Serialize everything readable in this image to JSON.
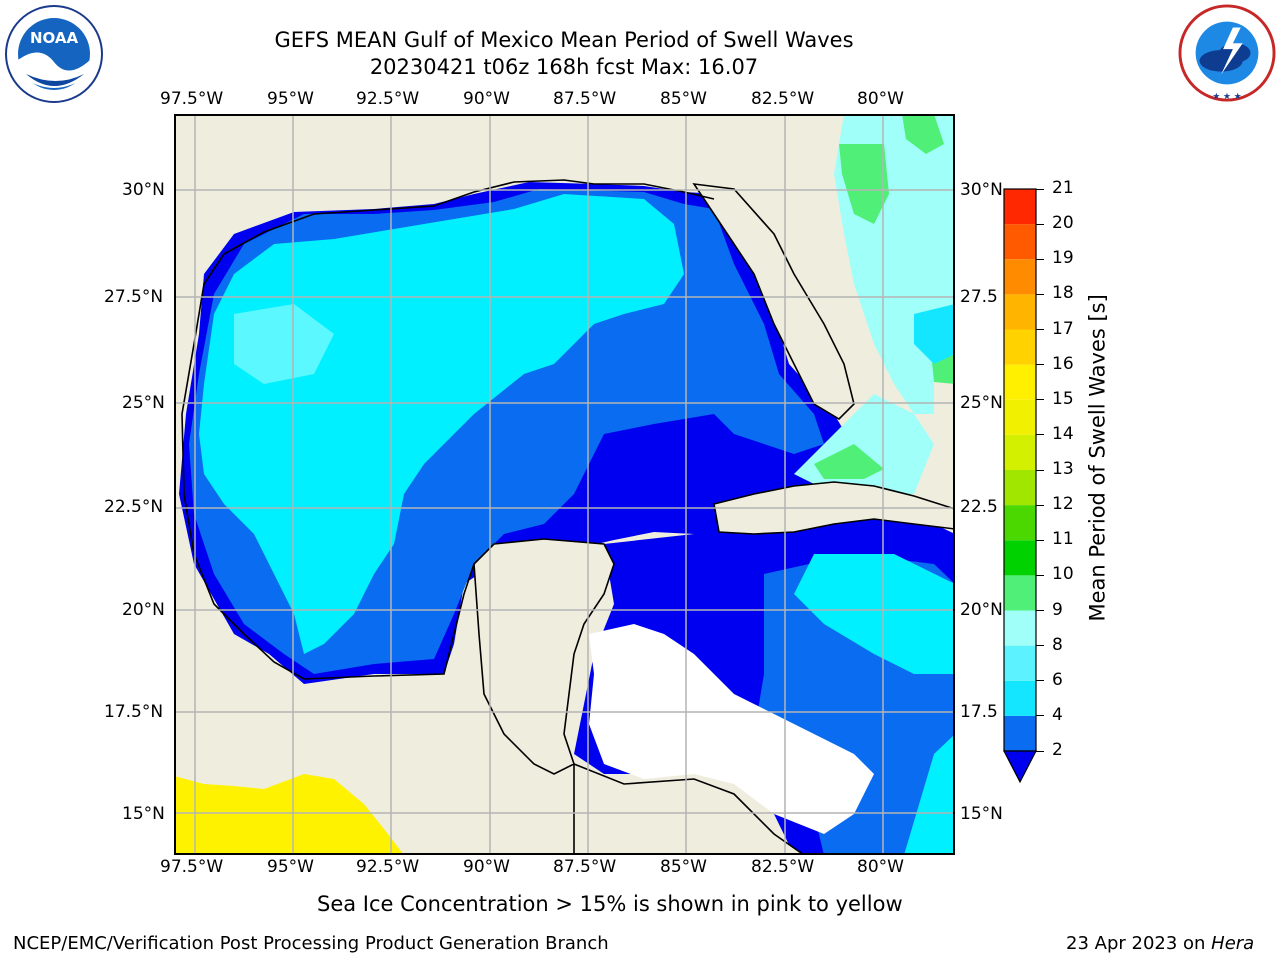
{
  "header": {
    "title_line1": "GEFS MEAN Gulf of Mexico Mean Period of Swell Waves",
    "title_line2": "20230421 t06z 168h fcst   Max: 16.07"
  },
  "logos": {
    "left": {
      "icon": "noaa-logo-icon",
      "text": "NOAA",
      "ring_text": "NATIONAL OCEANIC AND ATMOSPHERIC ADMINISTRATION · U.S. DEPARTMENT OF COMMERCE"
    },
    "right": {
      "icon": "nws-logo-icon",
      "ring_text": "NATIONAL WEATHER SERVICE"
    }
  },
  "map": {
    "lon_labels": [
      "97.5°W",
      "95°W",
      "92.5°W",
      "90°W",
      "87.5°W",
      "85°W",
      "82.5°W",
      "80°W"
    ],
    "lat_labels_left": [
      "30°N",
      "27.5°N",
      "25°N",
      "22.5°N",
      "20°N",
      "17.5°N",
      "15°N"
    ],
    "lat_labels_right": [
      "30°N",
      "27.5",
      "25°N",
      "22.5",
      "20°N",
      "17.5",
      "15°N"
    ],
    "colors": {
      "land": "#efedde",
      "grid": "#b4b4b4",
      "sea_ice": "#fff200",
      "missing": "#ffffff"
    }
  },
  "colorbar": {
    "label": "Mean Period of Swell Waves [s]",
    "ticks": [
      "2",
      "4",
      "6",
      "8",
      "9",
      "10",
      "11",
      "12",
      "13",
      "14",
      "15",
      "16",
      "17",
      "18",
      "19",
      "20",
      "21"
    ],
    "colors": [
      "#0a6cf0",
      "#14e6ff",
      "#5cf2ff",
      "#a0fff8",
      "#50f078",
      "#00d200",
      "#4ad800",
      "#a0e600",
      "#d2f000",
      "#f0f000",
      "#fff000",
      "#ffd200",
      "#ffb400",
      "#ff8c00",
      "#ff5a00",
      "#ff2800"
    ],
    "extend_color": "#0000f0"
  },
  "footer": {
    "note": "Sea Ice Concentration > 15% is shown in pink to yellow",
    "credit": "NCEP/EMC/Verification Post Processing Product Generation Branch",
    "date": "23 Apr 2023 on ",
    "host": "Hera"
  }
}
